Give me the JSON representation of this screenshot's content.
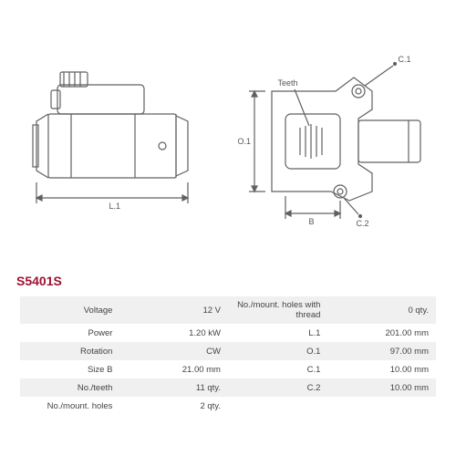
{
  "part_id": "S5401S",
  "part_id_color": "#a01030",
  "diagram": {
    "stroke_color": "#606060",
    "stroke_width": 1.2,
    "left_view": {
      "dim_L1": "L.1"
    },
    "right_view": {
      "label_teeth": "Teeth",
      "dim_O1": "O.1",
      "dim_B": "B",
      "dim_C1": "C.1",
      "dim_C2": "C.2"
    }
  },
  "specs": {
    "left": [
      {
        "label": "Voltage",
        "value": "12 V"
      },
      {
        "label": "Power",
        "value": "1.20 kW"
      },
      {
        "label": "Rotation",
        "value": "CW"
      },
      {
        "label": "Size B",
        "value": "21.00 mm"
      },
      {
        "label": "No./teeth",
        "value": "11 qty."
      },
      {
        "label": "No./mount. holes",
        "value": "2 qty."
      }
    ],
    "right": [
      {
        "label": "No./mount. holes with thread",
        "value": "0 qty."
      },
      {
        "label": "L.1",
        "value": "201.00 mm"
      },
      {
        "label": "O.1",
        "value": "97.00 mm"
      },
      {
        "label": "C.1",
        "value": "10.00 mm"
      },
      {
        "label": "C.2",
        "value": "10.00 mm"
      },
      {
        "label": "",
        "value": ""
      }
    ]
  },
  "table_style": {
    "odd_row_bg": "#f0f0f0",
    "even_row_bg": "#ffffff",
    "font_size": 9.5
  }
}
